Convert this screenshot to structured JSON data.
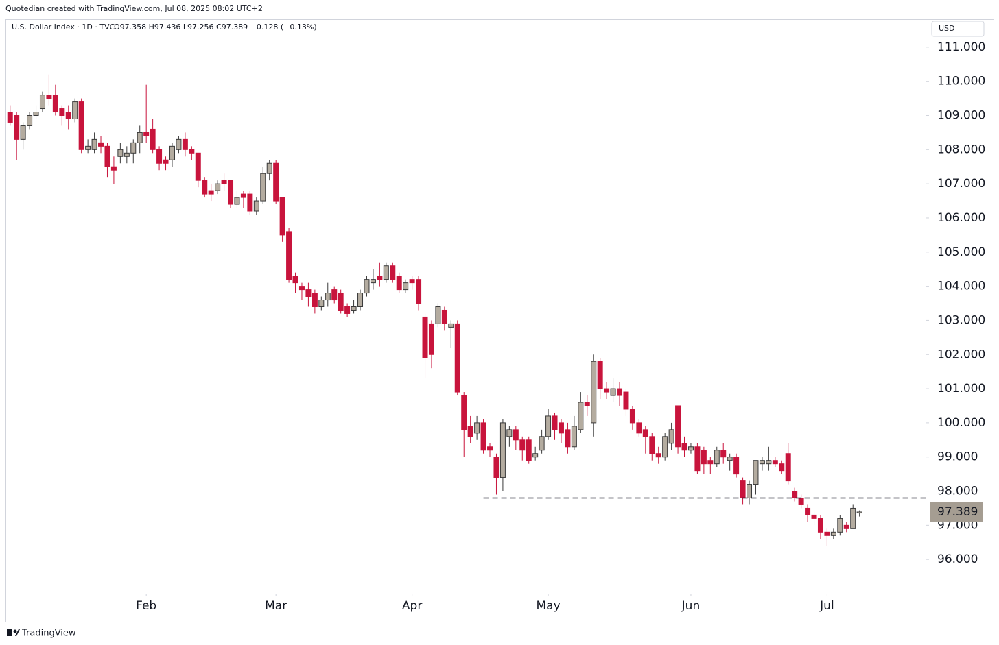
{
  "header": "Quotedian created with TradingView.com, Jul 08, 2025 08:02 UTC+2",
  "footer": "TradingView",
  "chart_data": {
    "type": "candlestick",
    "symbol": "U.S. Dollar Index · 1D · TVC",
    "ohlc_text": "O97.358 H97.436 L97.256 C97.389 −0.128 (−0.13%)",
    "currency": "USD",
    "up_color": "#b4ac a0",
    "down_color": "#c8143c",
    "open": [
      109.1,
      109.0,
      108.3,
      108.7,
      109.0,
      109.2,
      109.6,
      109.6,
      109.2,
      109.1,
      108.9,
      109.4,
      108.0,
      108.0,
      108.2,
      108.1,
      107.5,
      107.8,
      107.8,
      107.9,
      108.2,
      108.5,
      108.6,
      108.0,
      107.7,
      107.7,
      108.0,
      108.3,
      108.0,
      107.9,
      107.1,
      106.8,
      106.8,
      107.1,
      107.1,
      106.4,
      106.7,
      106.7,
      106.2,
      106.5,
      107.3,
      107.6,
      106.6,
      105.6,
      104.3,
      104.0,
      103.9,
      103.8,
      103.4,
      103.6,
      103.9,
      103.8,
      103.4,
      103.3,
      103.4,
      103.8,
      104.1,
      104.3,
      104.2,
      104.6,
      104.3,
      103.9,
      104.2,
      104.2,
      103.1,
      102.9,
      102.9,
      103.3,
      102.8,
      102.9,
      100.8,
      99.9,
      99.7,
      100.0,
      99.3,
      99.0,
      98.4,
      99.6,
      99.8,
      99.5,
      99.5,
      99.0,
      99.2,
      99.6,
      100.2,
      100.0,
      99.8,
      99.3,
      99.8,
      100.6,
      100.0,
      101.8,
      101.0,
      100.8,
      101.0,
      100.9,
      100.4,
      100.0,
      99.8,
      99.6,
      99.1,
      99.0,
      99.4,
      100.5,
      99.4,
      99.2,
      99.3,
      99.2,
      98.9,
      98.8,
      99.2,
      98.9,
      99.0,
      98.3,
      97.8,
      98.2,
      98.8,
      98.8,
      98.9,
      98.8,
      99.1,
      98.0,
      97.8,
      97.5,
      97.3,
      97.2,
      96.8,
      96.7,
      96.8,
      97.0,
      96.9,
      97.358
    ],
    "high": [
      109.3,
      109.1,
      108.8,
      109.1,
      109.3,
      109.7,
      110.2,
      109.9,
      109.3,
      109.3,
      109.5,
      109.5,
      108.3,
      108.5,
      108.4,
      108.2,
      107.8,
      108.2,
      108.1,
      108.3,
      108.7,
      109.9,
      108.9,
      108.1,
      107.8,
      108.2,
      108.4,
      108.5,
      108.1,
      107.9,
      107.2,
      107.0,
      107.1,
      107.3,
      107.1,
      106.8,
      106.8,
      106.8,
      106.6,
      107.5,
      107.7,
      107.7,
      106.6,
      105.7,
      104.4,
      104.1,
      104.1,
      103.9,
      103.7,
      104.1,
      104.0,
      103.9,
      103.5,
      103.6,
      103.9,
      104.3,
      104.5,
      104.7,
      104.7,
      104.7,
      104.4,
      104.2,
      104.3,
      104.3,
      103.2,
      103.0,
      103.5,
      103.4,
      103.0,
      103.0,
      100.9,
      100.2,
      100.2,
      100.1,
      99.4,
      99.1,
      100.1,
      99.9,
      99.9,
      99.6,
      99.6,
      99.3,
      99.8,
      100.4,
      100.3,
      100.1,
      100.0,
      100.2,
      100.9,
      100.8,
      102.0,
      101.9,
      101.2,
      101.3,
      101.2,
      101.0,
      100.5,
      100.1,
      99.9,
      99.7,
      99.3,
      99.7,
      100.0,
      100.5,
      99.6,
      99.4,
      99.4,
      99.3,
      99.0,
      99.3,
      99.4,
      99.1,
      99.1,
      98.4,
      98.3,
      98.9,
      99.0,
      99.3,
      99.0,
      98.9,
      99.4,
      98.1,
      97.9,
      97.6,
      97.4,
      97.3,
      96.9,
      96.9,
      97.3,
      97.1,
      97.6,
      97.436
    ],
    "low": [
      108.7,
      107.7,
      108.0,
      108.6,
      108.9,
      109.1,
      109.3,
      109.0,
      108.7,
      108.6,
      108.8,
      107.9,
      107.9,
      107.9,
      107.9,
      107.2,
      107.0,
      107.6,
      107.6,
      107.6,
      107.9,
      108.2,
      107.9,
      107.4,
      107.4,
      107.5,
      107.9,
      107.8,
      107.7,
      106.9,
      106.6,
      106.5,
      106.7,
      106.8,
      106.3,
      106.3,
      106.3,
      106.1,
      106.1,
      106.4,
      107.1,
      106.4,
      105.3,
      104.1,
      103.8,
      103.6,
      103.4,
      103.2,
      103.3,
      103.4,
      103.5,
      103.2,
      103.1,
      103.2,
      103.3,
      103.7,
      103.9,
      104.0,
      104.1,
      104.1,
      103.8,
      103.8,
      103.9,
      103.3,
      101.3,
      101.6,
      102.8,
      102.7,
      102.2,
      100.8,
      99.0,
      99.4,
      99.5,
      99.1,
      99.0,
      97.9,
      98.0,
      99.3,
      99.2,
      98.9,
      98.8,
      98.9,
      99.1,
      99.5,
      99.5,
      99.4,
      99.1,
      99.2,
      99.7,
      100.2,
      99.6,
      100.7,
      100.7,
      100.6,
      100.5,
      100.2,
      99.8,
      99.6,
      99.1,
      98.9,
      98.8,
      98.9,
      99.2,
      99.1,
      99.0,
      99.1,
      98.5,
      98.5,
      98.5,
      98.7,
      98.8,
      98.6,
      98.4,
      97.6,
      97.6,
      97.9,
      98.6,
      98.6,
      98.7,
      98.5,
      98.2,
      97.7,
      97.5,
      97.1,
      97.0,
      96.6,
      96.4,
      96.6,
      96.7,
      96.8,
      96.9,
      97.256
    ],
    "close": [
      108.8,
      108.3,
      108.7,
      109.0,
      109.1,
      109.6,
      109.5,
      109.1,
      109.0,
      108.9,
      109.4,
      108.0,
      108.1,
      108.3,
      108.1,
      107.5,
      107.4,
      108.0,
      107.9,
      108.2,
      108.5,
      108.4,
      108.0,
      107.6,
      107.6,
      108.1,
      108.3,
      108.0,
      107.9,
      107.1,
      106.7,
      106.7,
      107.0,
      107.0,
      106.4,
      106.6,
      106.6,
      106.2,
      106.5,
      107.3,
      107.6,
      106.5,
      105.5,
      104.2,
      104.1,
      103.9,
      103.7,
      103.4,
      103.6,
      103.8,
      103.6,
      103.3,
      103.2,
      103.4,
      103.8,
      104.2,
      104.2,
      104.2,
      104.6,
      104.2,
      103.9,
      104.1,
      104.1,
      103.5,
      101.9,
      102.0,
      103.4,
      102.9,
      102.9,
      100.9,
      99.8,
      99.6,
      100.0,
      99.2,
      99.2,
      98.4,
      100.0,
      99.8,
      99.5,
      99.2,
      98.9,
      99.1,
      99.6,
      100.2,
      99.8,
      99.7,
      99.3,
      99.9,
      100.6,
      100.5,
      101.8,
      101.0,
      100.9,
      101.0,
      100.8,
      100.4,
      100.0,
      99.7,
      99.6,
      99.1,
      99.0,
      99.6,
      99.8,
      99.3,
      99.2,
      99.3,
      98.6,
      98.8,
      98.8,
      99.2,
      99.0,
      99.0,
      98.5,
      97.8,
      98.2,
      98.9,
      98.9,
      98.9,
      98.8,
      98.6,
      98.3,
      97.8,
      97.6,
      97.3,
      97.2,
      96.8,
      96.7,
      96.8,
      97.2,
      96.9,
      97.5,
      97.389
    ],
    "last_price": {
      "value": 97.389,
      "label": "97.389"
    },
    "support_line": {
      "value": 97.8,
      "start": 73
    },
    "xlim": [
      -0.5,
      141.3
    ],
    "xticks": [
      {
        "value": 21,
        "label": "Feb"
      },
      {
        "value": 41,
        "label": "Mar"
      },
      {
        "value": 62,
        "label": "Apr"
      },
      {
        "value": 83,
        "label": "May"
      },
      {
        "value": 105,
        "label": "Jun"
      },
      {
        "value": 126,
        "label": "Jul"
      }
    ],
    "ylim": [
      95.0,
      111.78
    ],
    "yticks": [
      {
        "value": 96,
        "label": "96.000"
      },
      {
        "value": 97,
        "label": "97.000"
      },
      {
        "value": 98,
        "label": "98.000"
      },
      {
        "value": 99,
        "label": "99.000"
      },
      {
        "value": 100,
        "label": "100.000"
      },
      {
        "value": 101,
        "label": "101.000"
      },
      {
        "value": 102,
        "label": "102.000"
      },
      {
        "value": 103,
        "label": "103.000"
      },
      {
        "value": 104,
        "label": "104.000"
      },
      {
        "value": 105,
        "label": "105.000"
      },
      {
        "value": 106,
        "label": "106.000"
      },
      {
        "value": 107,
        "label": "107.000"
      },
      {
        "value": 108,
        "label": "108.000"
      },
      {
        "value": 109,
        "label": "109.000"
      },
      {
        "value": 110,
        "label": "110.000"
      },
      {
        "value": 111,
        "label": "111.000"
      }
    ]
  }
}
